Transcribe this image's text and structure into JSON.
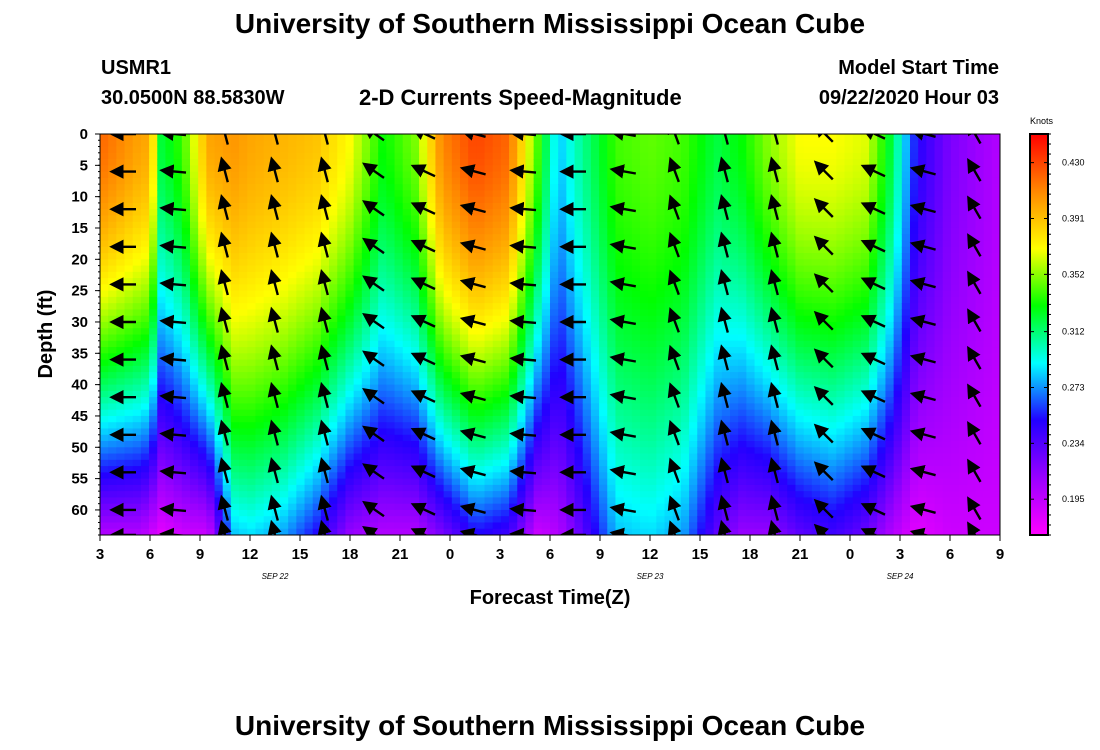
{
  "page": {
    "title_top": "University of Southern Mississippi Ocean Cube",
    "title_bottom": "University of Southern Mississippi Ocean Cube",
    "station": "USMR1",
    "coords": "30.0500N 88.5830W",
    "subtitle": "2-D Currents Speed-Magnitude",
    "model_start_label": "Model Start Time",
    "model_start_value": "09/22/2020 Hour 03"
  },
  "chart_data": {
    "type": "heatmap",
    "title": "2-D Currents Speed-Magnitude",
    "xlabel": "Forecast Time(Z)",
    "ylabel": "Depth (ft)",
    "x_ticks": [
      "3",
      "6",
      "9",
      "12",
      "15",
      "18",
      "21",
      "0",
      "3",
      "6",
      "9",
      "12",
      "15",
      "18",
      "21",
      "0",
      "3",
      "6",
      "9"
    ],
    "x_range_hours": [
      0,
      54
    ],
    "date_labels": [
      {
        "label": "SEP 22",
        "hour": 10.5
      },
      {
        "label": "SEP 23",
        "hour": 33
      },
      {
        "label": "SEP 24",
        "hour": 48
      }
    ],
    "y_ticks": [
      "0",
      "5",
      "10",
      "15",
      "20",
      "25",
      "30",
      "35",
      "40",
      "45",
      "50",
      "55",
      "60"
    ],
    "y_range_ft": [
      0,
      64
    ],
    "colorbar": {
      "unit": "Knots",
      "min": 0.17,
      "max": 0.45,
      "ticks": [
        "0.430",
        "0.391",
        "0.352",
        "0.312",
        "0.273",
        "0.234",
        "0.195"
      ],
      "stops": [
        "#ff00ff",
        "#9900ff",
        "#2200ff",
        "#00ffff",
        "#00ff00",
        "#ffff00",
        "#ff8800",
        "#ff0000"
      ]
    },
    "speed_profiles": {
      "columns": [
        {
          "hour": 0,
          "surface": 0.42,
          "bottom": 0.2
        },
        {
          "hour": 2.5,
          "surface": 0.4,
          "bottom": 0.2
        },
        {
          "hour": 3,
          "surface": 0.4,
          "bottom": 0.19
        },
        {
          "hour": 3.7,
          "surface": 0.32,
          "bottom": 0.18
        },
        {
          "hour": 5,
          "surface": 0.34,
          "bottom": 0.19
        },
        {
          "hour": 6.5,
          "surface": 0.4,
          "bottom": 0.19
        },
        {
          "hour": 8,
          "surface": 0.405,
          "bottom": 0.28
        },
        {
          "hour": 9,
          "surface": 0.4,
          "bottom": 0.285
        },
        {
          "hour": 11,
          "surface": 0.395,
          "bottom": 0.275
        },
        {
          "hour": 13,
          "surface": 0.39,
          "bottom": 0.25
        },
        {
          "hour": 15,
          "surface": 0.37,
          "bottom": 0.21
        },
        {
          "hour": 17,
          "surface": 0.33,
          "bottom": 0.2
        },
        {
          "hour": 19,
          "surface": 0.35,
          "bottom": 0.2
        },
        {
          "hour": 20.5,
          "surface": 0.41,
          "bottom": 0.22
        },
        {
          "hour": 22.5,
          "surface": 0.43,
          "bottom": 0.25
        },
        {
          "hour": 24.5,
          "surface": 0.42,
          "bottom": 0.24
        },
        {
          "hour": 26.3,
          "surface": 0.34,
          "bottom": 0.19
        },
        {
          "hour": 27.5,
          "surface": 0.28,
          "bottom": 0.2
        },
        {
          "hour": 28.5,
          "surface": 0.3,
          "bottom": 0.22
        },
        {
          "hour": 31,
          "surface": 0.34,
          "bottom": 0.28
        },
        {
          "hour": 33,
          "surface": 0.345,
          "bottom": 0.285
        },
        {
          "hour": 35,
          "surface": 0.34,
          "bottom": 0.275
        },
        {
          "hour": 37,
          "surface": 0.32,
          "bottom": 0.23
        },
        {
          "hour": 38.5,
          "surface": 0.33,
          "bottom": 0.21
        },
        {
          "hour": 40,
          "surface": 0.35,
          "bottom": 0.21
        },
        {
          "hour": 42,
          "surface": 0.37,
          "bottom": 0.23
        },
        {
          "hour": 44,
          "surface": 0.37,
          "bottom": 0.24
        },
        {
          "hour": 46,
          "surface": 0.365,
          "bottom": 0.225
        },
        {
          "hour": 47.5,
          "surface": 0.32,
          "bottom": 0.2
        },
        {
          "hour": 49,
          "surface": 0.25,
          "bottom": 0.18
        },
        {
          "hour": 51,
          "surface": 0.22,
          "bottom": 0.19
        },
        {
          "hour": 54,
          "surface": 0.2,
          "bottom": 0.19
        }
      ]
    },
    "vector_hours": [
      1.5,
      4.5,
      7.5,
      10.5,
      13.5,
      16.5,
      19.5,
      22.5,
      25.5,
      28.5,
      31.5,
      34.5,
      37.5,
      40.5,
      43.5,
      46.5,
      49.5,
      52.5
    ],
    "vector_depths_ft": [
      0,
      6,
      12,
      18,
      24,
      30,
      36,
      42,
      48,
      54,
      60,
      64
    ],
    "vector_directions_deg": [
      180,
      185,
      255,
      255,
      255,
      215,
      205,
      195,
      185,
      180,
      190,
      250,
      255,
      255,
      225,
      205,
      195,
      240
    ]
  }
}
